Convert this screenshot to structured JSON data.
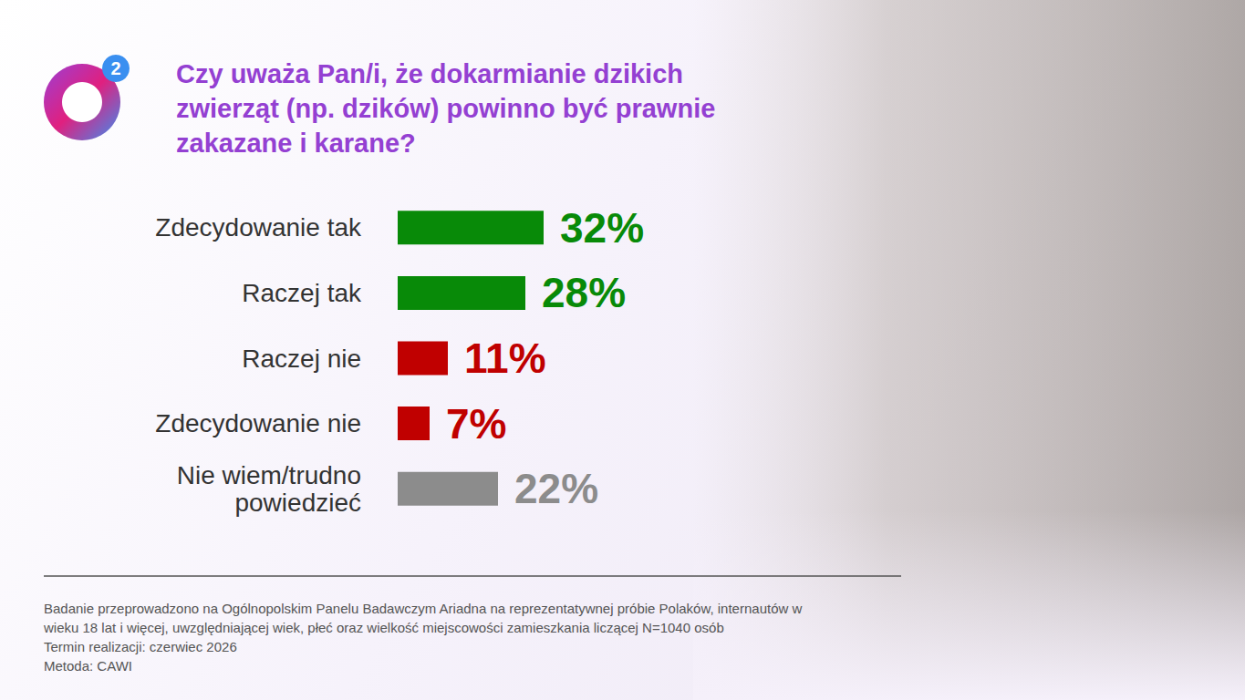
{
  "chart_data": {
    "type": "bar",
    "orientation": "horizontal",
    "logo": "2",
    "title": "Czy uważa Pan/i, że dokarmianie dzikich zwierząt (np. dzików) powinno być prawnie zakazane i karane?",
    "categories": [
      "Zdecydowanie tak",
      "Raczej tak",
      "Raczej nie",
      "Zdecydowanie nie",
      "Nie wiem/trudno powiedzieć"
    ],
    "values": [
      32,
      28,
      11,
      7,
      22
    ],
    "value_labels": [
      "32%",
      "28%",
      "11%",
      "7%",
      "22%"
    ],
    "colors": [
      "#088a08",
      "#088a08",
      "#c00000",
      "#c00000",
      "#8c8c8c"
    ],
    "xlim": [
      0,
      100
    ],
    "data_labels": true,
    "tick_labels": false,
    "grid": false,
    "notes": [
      "Badanie przeprowadzono na Ogólnopolskim Panelu Badawczym Ariadna na reprezentatywnej próbie Polaków, internautów w wieku 18 lat i więcej, uwzględniającej wiek, płeć oraz wielkość miejscowości zamieszkania liczącej N=1040 osób",
      "Termin realizacji: czerwiec 2026",
      "Metoda: CAWI"
    ]
  }
}
